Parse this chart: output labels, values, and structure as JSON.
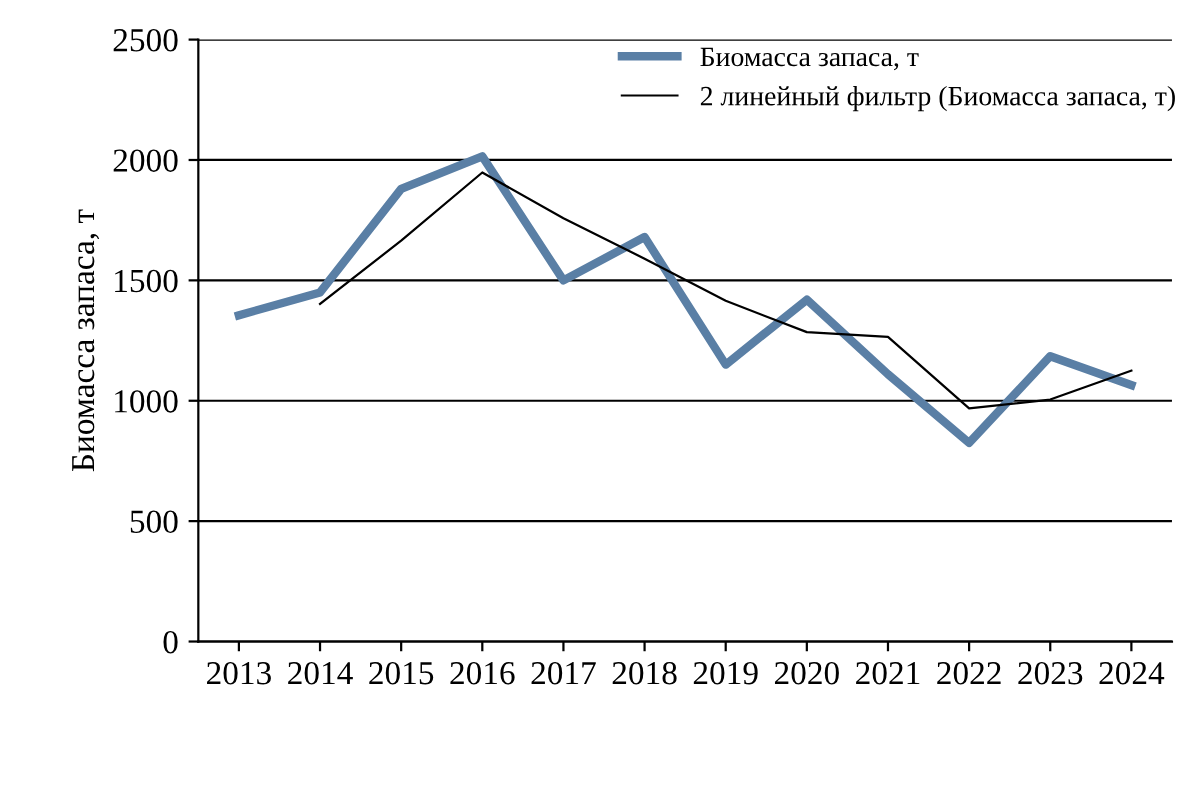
{
  "chart_data": {
    "type": "line",
    "ylabel": "Биомасса запаса, т",
    "categories": [
      "2013",
      "2014",
      "2015",
      "2016",
      "2017",
      "2018",
      "2019",
      "2020",
      "2021",
      "2022",
      "2023",
      "2024"
    ],
    "series": [
      {
        "name": "Биомасса запаса, т",
        "color": "#5a7fa5",
        "values": [
          1355,
          1450,
          1880,
          2015,
          1500,
          1680,
          1150,
          1420,
          1110,
          825,
          1185,
          1065
        ]
      },
      {
        "name": "2 линейный фильтр (Биомасса запаса, т)",
        "color": "#000000",
        "values": [
          null,
          1402,
          1665,
          1948,
          1758,
          1590,
          1415,
          1285,
          1265,
          968,
          1005,
          1125
        ]
      }
    ],
    "ylim": [
      0,
      2500
    ],
    "yticks": [
      0,
      500,
      1000,
      1500,
      2000,
      2500
    ],
    "grid": "y",
    "legend": "top right"
  }
}
